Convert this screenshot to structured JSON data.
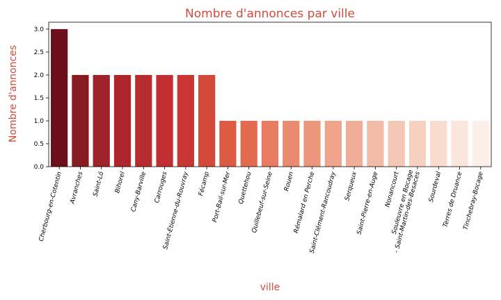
{
  "chart_data": {
    "type": "bar",
    "title": "Nombre d'annonces par ville",
    "xlabel": "ville",
    "ylabel": "Nombre d'annonces",
    "ylim": [
      0,
      3.15
    ],
    "yticks": [
      "0.0",
      "0.5",
      "1.0",
      "1.5",
      "2.0",
      "2.5",
      "3.0"
    ],
    "grid": false,
    "label_color": "#d14a3b",
    "categories": [
      "Cherbourg-en-Cotentin",
      "Avranches",
      "Saint-Lô",
      "Bihorel",
      "Cany-Barville",
      "Carrouges",
      "Saint-Étienne-du-Rouvray",
      "Fécamp",
      "Port-Bail-sur-Mer",
      "Quettehou",
      "Quillebeuf-sur-Seine",
      "Rouen",
      "Rémalard en Perche",
      "Saint-Clément-Rancoudray",
      "Serqueux",
      "Saint-Pierre-en-Auge",
      "Nonancourt",
      "Souleuvre en Bocage\n- Saint-Martin-des-Besaces",
      "Sourdeval",
      "Terres de Druance",
      "Tinchebray-Bocage"
    ],
    "values": [
      3,
      2,
      2,
      2,
      2,
      2,
      2,
      2,
      1,
      1,
      1,
      1,
      1,
      1,
      1,
      1,
      1,
      1,
      1,
      1,
      1
    ],
    "colors": [
      "#6b0f1a",
      "#861b22",
      "#a0222a",
      "#ae262c",
      "#b82b2e",
      "#c02e31",
      "#c93633",
      "#d34a3a",
      "#db5a42",
      "#e26b4f",
      "#e77c60",
      "#ea8a6e",
      "#ec977c",
      "#eea38a",
      "#f0ae98",
      "#f2bba6",
      "#f4c6b4",
      "#f6d1c2",
      "#f8dcd0",
      "#fae6dd",
      "#fcefe9"
    ]
  }
}
